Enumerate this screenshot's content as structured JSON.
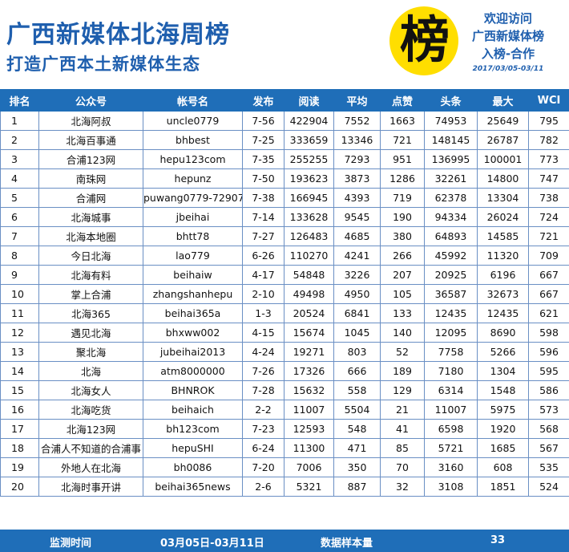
{
  "header": {
    "title": "广西新媒体北海周榜",
    "subtitle": "打造广西本土新媒体生态",
    "logo_char": "榜",
    "promo_line1": "欢迎访问",
    "promo_line2": "广西新媒体榜",
    "promo_line3": "入榜-合作",
    "date_range": "2017/03/05-03/11"
  },
  "table": {
    "columns": [
      "排名",
      "公众号",
      "帐号名",
      "发布",
      "阅读",
      "平均",
      "点赞",
      "头条",
      "最大",
      "WCI"
    ],
    "rows": [
      [
        "1",
        "北海阿叔",
        "uncle0779",
        "7-56",
        "422904",
        "7552",
        "1663",
        "74953",
        "25649",
        "795"
      ],
      [
        "2",
        "北海百事通",
        "bhbest",
        "7-25",
        "333659",
        "13346",
        "721",
        "148145",
        "26787",
        "782"
      ],
      [
        "3",
        "合浦123网",
        "hepu123com",
        "7-35",
        "255255",
        "7293",
        "951",
        "136995",
        "100001",
        "773"
      ],
      [
        "4",
        "南珠网",
        "hepunz",
        "7-50",
        "193623",
        "3873",
        "1286",
        "32261",
        "14800",
        "747"
      ],
      [
        "5",
        "合浦网",
        "puwang0779-72907",
        "7-38",
        "166945",
        "4393",
        "719",
        "62378",
        "13304",
        "738"
      ],
      [
        "6",
        "北海城事",
        "jbeihai",
        "7-14",
        "133628",
        "9545",
        "190",
        "94334",
        "26024",
        "724"
      ],
      [
        "7",
        "北海本地圈",
        "bhtt78",
        "7-27",
        "126483",
        "4685",
        "380",
        "64893",
        "14585",
        "721"
      ],
      [
        "8",
        "今日北海",
        "lao779",
        "6-26",
        "110270",
        "4241",
        "266",
        "45992",
        "11320",
        "709"
      ],
      [
        "9",
        "北海有料",
        "beihaiw",
        "4-17",
        "54848",
        "3226",
        "207",
        "20925",
        "6196",
        "667"
      ],
      [
        "10",
        "掌上合浦",
        "zhangshanhepu",
        "2-10",
        "49498",
        "4950",
        "105",
        "36587",
        "32673",
        "667"
      ],
      [
        "11",
        "北海365",
        "beihai365a",
        "1-3",
        "20524",
        "6841",
        "133",
        "12435",
        "12435",
        "621"
      ],
      [
        "12",
        "遇见北海",
        "bhxww002",
        "4-15",
        "15674",
        "1045",
        "140",
        "12095",
        "8690",
        "598"
      ],
      [
        "13",
        "聚北海",
        "jubeihai2013",
        "4-24",
        "19271",
        "803",
        "52",
        "7758",
        "5266",
        "596"
      ],
      [
        "14",
        "北海",
        "atm8000000",
        "7-26",
        "17326",
        "666",
        "189",
        "7180",
        "1304",
        "595"
      ],
      [
        "15",
        "北海女人",
        "BHNROK",
        "7-28",
        "15632",
        "558",
        "129",
        "6314",
        "1548",
        "586"
      ],
      [
        "16",
        "北海吃货",
        "beihaich",
        "2-2",
        "11007",
        "5504",
        "21",
        "11007",
        "5975",
        "573"
      ],
      [
        "17",
        "北海123网",
        "bh123com",
        "7-23",
        "12593",
        "548",
        "41",
        "6598",
        "1920",
        "568"
      ],
      [
        "18",
        "合浦人不知道的合浦事",
        "hepuSHI",
        "6-24",
        "11300",
        "471",
        "85",
        "5721",
        "1685",
        "567"
      ],
      [
        "19",
        "外地人在北海",
        "bh0086",
        "7-20",
        "7006",
        "350",
        "70",
        "3160",
        "608",
        "535"
      ],
      [
        "20",
        "北海时事开讲",
        "beihai365news",
        "2-6",
        "5321",
        "887",
        "32",
        "3108",
        "1851",
        "524"
      ]
    ]
  },
  "footer": {
    "label_period": "监测时间",
    "period": "03月05日-03月11日",
    "label_sample": "数据样本量",
    "sample": "33"
  },
  "colors": {
    "brand_blue": "#1f6eb8",
    "title_blue": "#1f5fae",
    "logo_yellow": "#ffde00"
  }
}
